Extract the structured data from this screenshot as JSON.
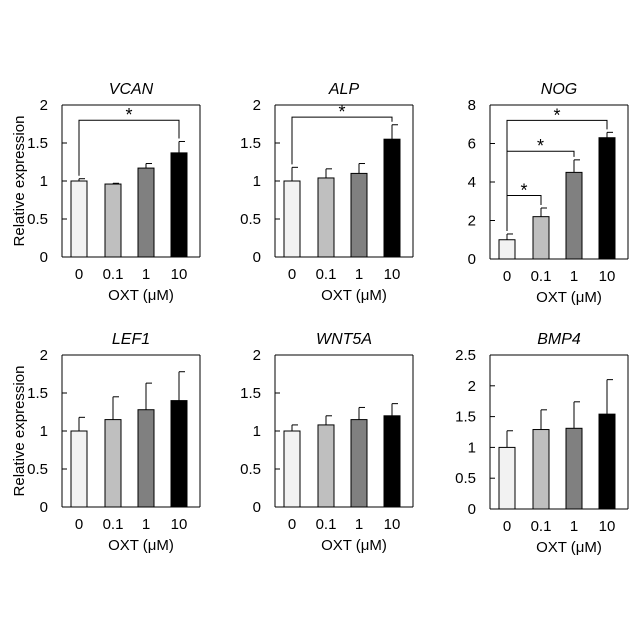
{
  "chart_data": [
    {
      "type": "bar",
      "title": "VCAN",
      "categories": [
        "0",
        "0.1",
        "1",
        "10"
      ],
      "values": [
        1.0,
        0.96,
        1.17,
        1.37
      ],
      "errors": [
        0.03,
        0.01,
        0.06,
        0.15
      ],
      "ylabel": "Relative expression",
      "xlabel": "OXT (μM)",
      "ylim": [
        0,
        2
      ],
      "yticks": [
        "0",
        "0.5",
        "1",
        "1.5",
        "2"
      ],
      "significance": [
        {
          "from": 0,
          "to": 3,
          "level": 1.8,
          "label": "*"
        }
      ]
    },
    {
      "type": "bar",
      "title": "ALP",
      "categories": [
        "0",
        "0.1",
        "1",
        "10"
      ],
      "values": [
        1.0,
        1.04,
        1.1,
        1.55
      ],
      "errors": [
        0.18,
        0.12,
        0.13,
        0.19
      ],
      "ylabel": "",
      "xlabel": "OXT (μM)",
      "ylim": [
        0,
        2
      ],
      "yticks": [
        "0",
        "0.5",
        "1",
        "1.5",
        "2"
      ],
      "significance": [
        {
          "from": 0,
          "to": 3,
          "level": 1.84,
          "label": "*"
        }
      ]
    },
    {
      "type": "bar",
      "title": "NOG",
      "categories": [
        "0",
        "0.1",
        "1",
        "10"
      ],
      "values": [
        1.0,
        2.2,
        4.5,
        6.3
      ],
      "errors": [
        0.3,
        0.45,
        0.65,
        0.28
      ],
      "ylabel": "",
      "xlabel": "OXT (μM)",
      "ylim": [
        0,
        8
      ],
      "yticks": [
        "0",
        "2",
        "4",
        "6",
        "8"
      ],
      "significance": [
        {
          "from": 0,
          "to": 1,
          "level": 3.3,
          "label": "*"
        },
        {
          "from": 0,
          "to": 2,
          "level": 5.6,
          "label": "*"
        },
        {
          "from": 0,
          "to": 3,
          "level": 7.2,
          "label": "*"
        }
      ]
    },
    {
      "type": "bar",
      "title": "LEF1",
      "categories": [
        "0",
        "0.1",
        "1",
        "10"
      ],
      "values": [
        1.0,
        1.15,
        1.28,
        1.4
      ],
      "errors": [
        0.18,
        0.3,
        0.35,
        0.38
      ],
      "ylabel": "Relative expression",
      "xlabel": "OXT (μM)",
      "ylim": [
        0,
        2
      ],
      "yticks": [
        "0",
        "0.5",
        "1",
        "1.5",
        "2"
      ],
      "significance": []
    },
    {
      "type": "bar",
      "title": "WNT5A",
      "categories": [
        "0",
        "0.1",
        "1",
        "10"
      ],
      "values": [
        1.0,
        1.08,
        1.15,
        1.2
      ],
      "errors": [
        0.08,
        0.12,
        0.16,
        0.16
      ],
      "ylabel": "",
      "xlabel": "OXT (μM)",
      "ylim": [
        0,
        2
      ],
      "yticks": [
        "0",
        "0.5",
        "1",
        "1.5",
        "2"
      ],
      "significance": []
    },
    {
      "type": "bar",
      "title": "BMP4",
      "categories": [
        "0",
        "0.1",
        "1",
        "10"
      ],
      "values": [
        1.0,
        1.29,
        1.31,
        1.54
      ],
      "errors": [
        0.27,
        0.32,
        0.43,
        0.56
      ],
      "ylabel": "",
      "xlabel": "OXT (μM)",
      "ylim": [
        0,
        2.5
      ],
      "yticks": [
        "0",
        "0.5",
        "1",
        "1.5",
        "2",
        "2.5"
      ],
      "significance": []
    }
  ],
  "colors": {
    "bars": [
      "#f2f2f2",
      "#bfbfbf",
      "#808080",
      "#000000"
    ],
    "stroke": "#000000"
  }
}
